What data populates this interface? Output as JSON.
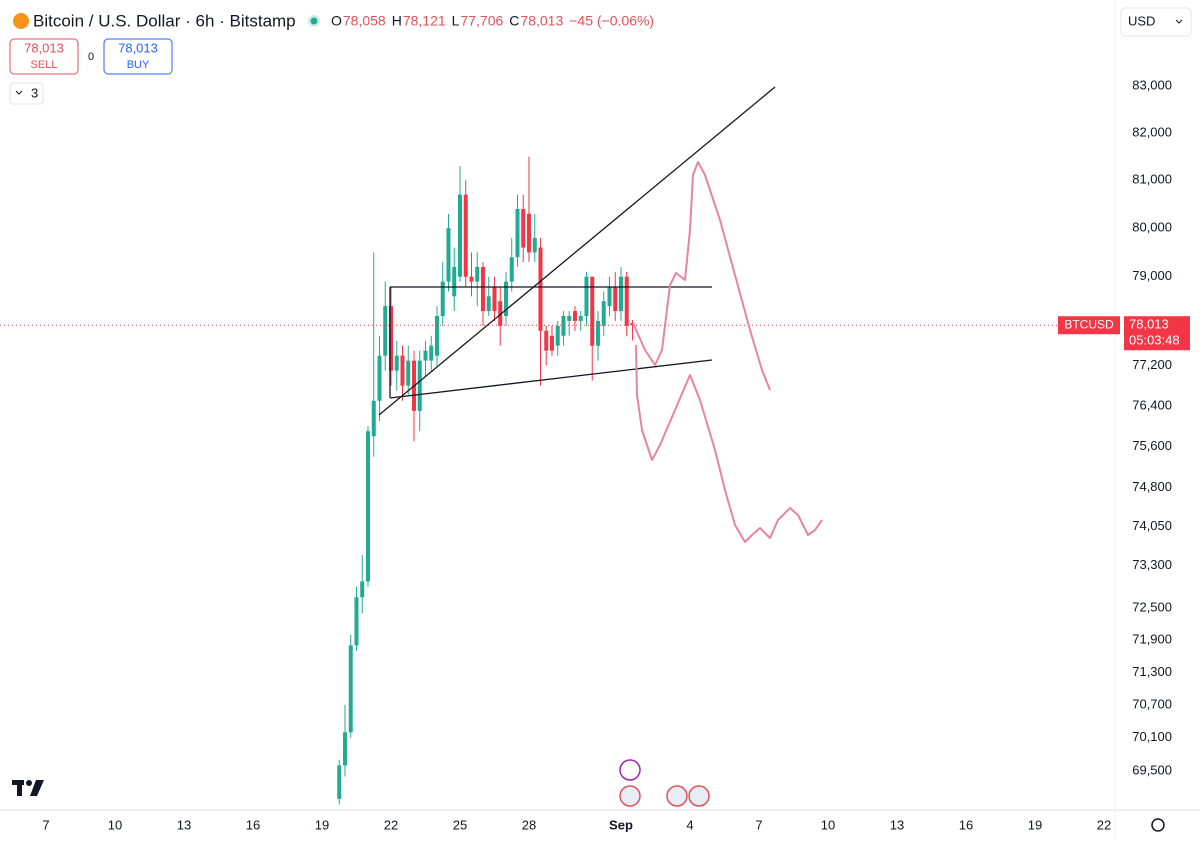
{
  "header": {
    "title": "Bitcoin / U.S. Dollar · 6h · Bitstamp",
    "ohlc": [
      {
        "label": "O",
        "value": "78,058"
      },
      {
        "label": "H",
        "value": "78,121"
      },
      {
        "label": "L",
        "value": "77,706"
      },
      {
        "label": "C",
        "value": "78,013"
      }
    ],
    "change": "−45 (−0.06%)",
    "currency": "USD",
    "sell": {
      "price": "78,013",
      "label": "SELL"
    },
    "spread": "0",
    "buy": {
      "price": "78,013",
      "label": "BUY"
    },
    "lots": "3"
  },
  "chart_data": {
    "type": "candlestick",
    "log_scale": true,
    "up_color": "#22ab94",
    "down_color": "#f23645",
    "x": [
      19.75,
      20,
      20.25,
      20.5,
      20.75,
      21,
      21.25,
      21.5,
      21.75,
      22,
      22.25,
      22.5,
      22.75,
      23,
      23.25,
      23.5,
      23.75,
      24,
      24.25,
      24.5,
      24.75,
      25,
      25.25,
      25.5,
      25.75,
      26,
      26.25,
      26.5,
      26.75,
      27,
      27.25,
      27.5,
      27.75,
      28,
      28.25,
      28.5,
      28.75,
      29,
      29.25,
      29.5,
      29.75,
      30,
      30.25,
      30.5,
      30.75,
      31,
      31.25,
      31.5,
      31.75,
      32,
      32.25,
      32.5
    ],
    "open": [
      69000,
      69600,
      70200,
      71800,
      72700,
      73000,
      75800,
      76500,
      77400,
      78400,
      77100,
      77400,
      76800,
      77300,
      76300,
      77300,
      77300,
      77400,
      78200,
      78900,
      78600,
      79000,
      80700,
      79000,
      78900,
      79200,
      78300,
      78800,
      78500,
      78200,
      78900,
      79400,
      80400,
      80300,
      79500,
      79600,
      77900,
      77800,
      77600,
      77800,
      78100,
      78300,
      78100,
      78200,
      79000,
      77600,
      78000,
      78400,
      78800,
      78300,
      79000,
      78058
    ],
    "high": [
      69700,
      70700,
      72000,
      72900,
      73500,
      76000,
      79500,
      77800,
      78900,
      78800,
      77700,
      77600,
      77600,
      77500,
      77500,
      77700,
      77800,
      78400,
      79300,
      80300,
      79600,
      81300,
      81000,
      79500,
      79500,
      79300,
      79000,
      79000,
      78800,
      79100,
      79800,
      80700,
      80700,
      81500,
      80300,
      79800,
      78000,
      78000,
      78100,
      78300,
      78300,
      78400,
      78300,
      79100,
      79000,
      78300,
      78700,
      79000,
      79100,
      79200,
      79100,
      78121
    ],
    "low": [
      68900,
      69400,
      70100,
      71700,
      72400,
      72900,
      75400,
      76100,
      77100,
      76800,
      76700,
      76500,
      76600,
      75700,
      75900,
      77000,
      77100,
      77200,
      78000,
      78700,
      78300,
      78900,
      78800,
      78600,
      78400,
      78000,
      78200,
      78100,
      77600,
      78000,
      78700,
      79200,
      79300,
      79300,
      79300,
      76800,
      77200,
      77400,
      77400,
      77600,
      77800,
      77900,
      77900,
      78000,
      76900,
      77300,
      77800,
      78200,
      78100,
      78100,
      77800,
      77706
    ],
    "close": [
      69600,
      70200,
      71800,
      72700,
      73000,
      75900,
      76500,
      77400,
      78400,
      77100,
      77400,
      76800,
      77300,
      76300,
      77300,
      77500,
      77600,
      78200,
      78900,
      80000,
      79200,
      80700,
      79000,
      78900,
      79200,
      78300,
      78600,
      78300,
      78000,
      78900,
      79400,
      80400,
      79600,
      79500,
      79800,
      77900,
      77500,
      77500,
      78000,
      78200,
      78200,
      78100,
      78200,
      79000,
      77600,
      78100,
      78500,
      78800,
      78300,
      79000,
      78000,
      78013
    ],
    "last_price": {
      "symbol": "BTCUSD",
      "value": 78013,
      "label": "78,013",
      "countdown": "05:03:48"
    },
    "xlim": [
      5,
      53.48
    ],
    "xticks": [
      7,
      10,
      13,
      16,
      19,
      22,
      25,
      28,
      {
        "value": 32,
        "label": "Sep"
      },
      {
        "value": 35,
        "label": "4"
      },
      {
        "value": 38,
        "label": "7"
      },
      {
        "value": 41,
        "label": "10"
      },
      {
        "value": 44,
        "label": "13"
      },
      {
        "value": 47,
        "label": "16"
      },
      {
        "value": 50,
        "label": "19"
      },
      {
        "value": 53,
        "label": "22"
      }
    ],
    "ylim": [
      68800,
      84700
    ],
    "yticks": [
      {
        "value": 83000,
        "label": "83,000"
      },
      {
        "value": 82000,
        "label": "82,000"
      },
      {
        "value": 81000,
        "label": "81,000"
      },
      {
        "value": 80000,
        "label": "80,000"
      },
      {
        "value": 79000,
        "label": "79,000"
      },
      {
        "value": 77200,
        "label": "77,200"
      },
      {
        "value": 76400,
        "label": "76,400"
      },
      {
        "value": 75600,
        "label": "75,600"
      },
      {
        "value": 74800,
        "label": "74,800"
      },
      {
        "value": 74050,
        "label": "74,050"
      },
      {
        "value": 73300,
        "label": "73,300"
      },
      {
        "value": 72500,
        "label": "72,500"
      },
      {
        "value": 71900,
        "label": "71,900"
      },
      {
        "value": 71300,
        "label": "71,300"
      },
      {
        "value": 70700,
        "label": "70,700"
      },
      {
        "value": 70100,
        "label": "70,100"
      },
      {
        "value": 69500,
        "label": "69,500"
      }
    ]
  }
}
